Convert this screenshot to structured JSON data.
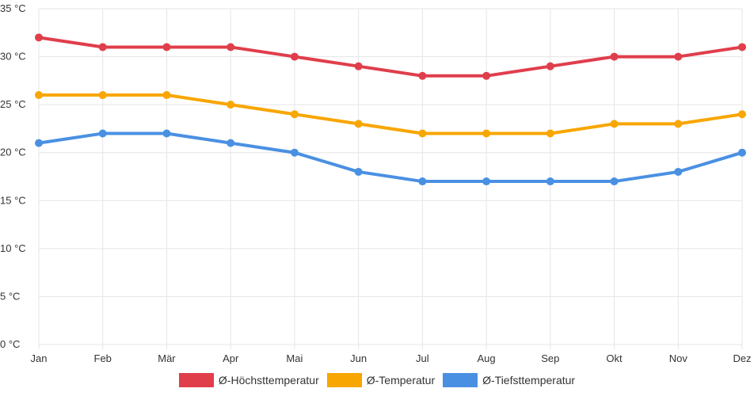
{
  "chart_data": {
    "type": "line",
    "title": "",
    "xlabel": "",
    "ylabel": "",
    "categories": [
      "Jan",
      "Feb",
      "Mär",
      "Apr",
      "Mai",
      "Jun",
      "Jul",
      "Aug",
      "Sep",
      "Okt",
      "Nov",
      "Dez"
    ],
    "ylim": [
      0,
      35
    ],
    "y_ticks": [
      "0 °C",
      "5 °C",
      "10 °C",
      "15 °C",
      "20 °C",
      "25 °C",
      "30 °C",
      "35 °C"
    ],
    "y_tick_values": [
      0,
      5,
      10,
      15,
      20,
      25,
      30,
      35
    ],
    "grid": true,
    "legend_position": "bottom",
    "series": [
      {
        "name": "Ø-Höchsttemperatur",
        "color": "#e03e4b",
        "values": [
          32,
          31,
          31,
          31,
          30,
          29,
          28,
          28,
          29,
          30,
          30,
          31
        ]
      },
      {
        "name": "Ø-Temperatur",
        "color": "#f8a602",
        "values": [
          26,
          26,
          26,
          25,
          24,
          23,
          22,
          22,
          22,
          23,
          23,
          24
        ]
      },
      {
        "name": "Ø-Tiefsttemperatur",
        "color": "#4a90e2",
        "values": [
          21,
          22,
          22,
          21,
          20,
          18,
          17,
          17,
          17,
          17,
          18,
          20
        ]
      }
    ]
  }
}
